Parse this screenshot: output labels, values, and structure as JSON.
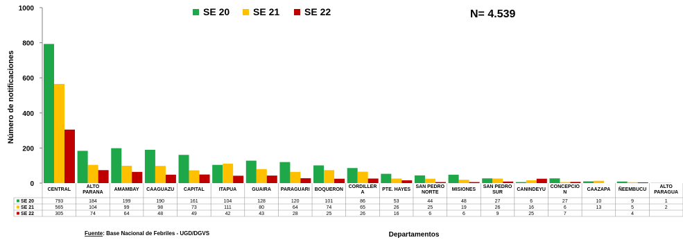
{
  "chart_data": {
    "type": "bar",
    "ylabel": "Número de notificaciones",
    "xlabel": "Departamentos",
    "total_label": "N= 4.539",
    "source_prefix": "Fuente",
    "source_text": ": Base Nacional de  Febriles - UGD/DGVS",
    "ylim": [
      0,
      1000
    ],
    "yticks": [
      "0",
      "200",
      "400",
      "600",
      "800",
      "1000"
    ],
    "grid": false,
    "legend_position": "top-center",
    "categories": [
      [
        "CENTRAL"
      ],
      [
        "ALTO",
        "PARANA"
      ],
      [
        "AMAMBAY"
      ],
      [
        "CAAGUAZU"
      ],
      [
        "CAPITAL"
      ],
      [
        "ITAPUA"
      ],
      [
        "GUAIRA"
      ],
      [
        "PARAGUARI"
      ],
      [
        "BOQUERON"
      ],
      [
        "CORDILLER",
        "A"
      ],
      [
        "PTE. HAYES"
      ],
      [
        "SAN PEDRO",
        "NORTE"
      ],
      [
        "MISIONES"
      ],
      [
        "SAN PEDRO",
        "SUR"
      ],
      [
        "CANINDEYU"
      ],
      [
        "CONCEPCIO",
        "N"
      ],
      [
        "CAAZAPA"
      ],
      [
        "ÑEEMBUCU"
      ],
      [
        "ALTO",
        "PARAGUA"
      ]
    ],
    "series": [
      {
        "name": "SE 20",
        "color": "#1ea84a",
        "values": [
          793,
          184,
          199,
          190,
          161,
          104,
          128,
          120,
          101,
          86,
          53,
          44,
          48,
          27,
          6,
          27,
          10,
          9,
          1
        ],
        "display": [
          "793",
          "184",
          "199",
          "190",
          "161",
          "104",
          "128",
          "120",
          "101",
          "86",
          "53",
          "44",
          "48",
          "27",
          "6",
          "27",
          "10",
          "9",
          "1"
        ]
      },
      {
        "name": "SE 21",
        "color": "#ffc000",
        "values": [
          565,
          104,
          99,
          98,
          73,
          111,
          80,
          64,
          74,
          65,
          26,
          25,
          19,
          26,
          16,
          6,
          13,
          5,
          2
        ],
        "display": [
          "565",
          "104",
          "99",
          "98",
          "73",
          "111",
          "80",
          "64",
          "74",
          "65",
          "26",
          "25",
          "19",
          "26",
          "16",
          "6",
          "13",
          "5",
          "2"
        ]
      },
      {
        "name": "SE 22",
        "color": "#c00000",
        "values": [
          305,
          74,
          64,
          48,
          49,
          42,
          43,
          28,
          25,
          26,
          16,
          6,
          6,
          9,
          25,
          7,
          0,
          4,
          0
        ],
        "display": [
          "305",
          "74",
          "64",
          "48",
          "49",
          "42",
          "43",
          "28",
          "25",
          "26",
          "16",
          "6",
          "6",
          "9",
          "25",
          "7",
          "",
          "4",
          ""
        ]
      }
    ]
  }
}
